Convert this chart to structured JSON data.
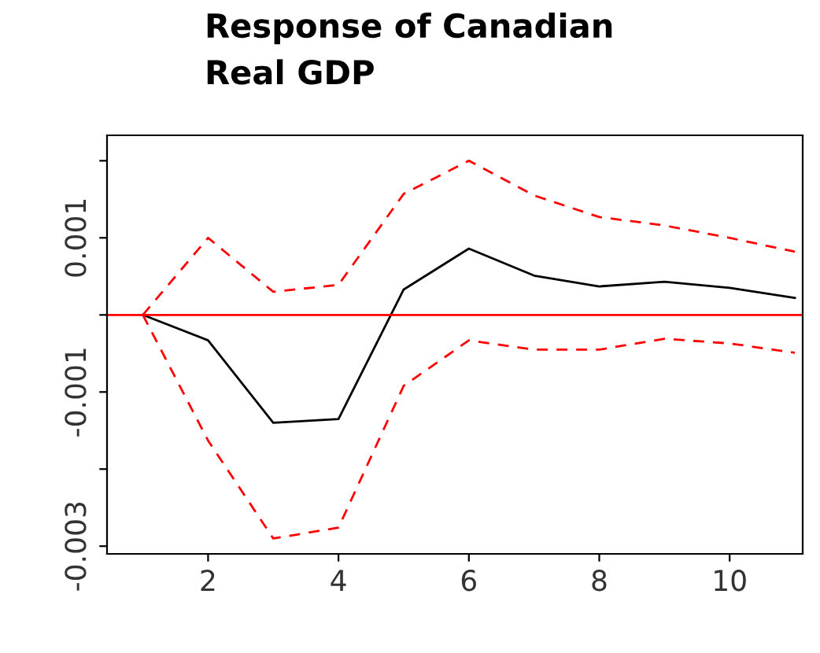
{
  "chart_data": {
    "type": "line",
    "title": "Response of Canadian\nReal GDP",
    "x": [
      1,
      2,
      3,
      4,
      5,
      6,
      7,
      8,
      9,
      10,
      11
    ],
    "series": [
      {
        "color": "#000000",
        "line_style": "solid",
        "values": [
          0,
          -0.00033,
          -0.0014,
          -0.00135,
          0.00033,
          0.00086,
          0.00051,
          0.00037,
          0.00043,
          0.00035,
          0.00022
        ]
      },
      {
        "color": "#ff0000",
        "line_style": "dashed",
        "values": [
          0,
          0.001,
          0.0003,
          0.00039,
          0.00157,
          0.002,
          0.00155,
          0.00127,
          0.00116,
          0.001,
          0.00082
        ]
      },
      {
        "color": "#ff0000",
        "line_style": "dashed",
        "values": [
          0,
          -0.00163,
          -0.0029,
          -0.00276,
          -0.00092,
          -0.00033,
          -0.00045,
          -0.00045,
          -0.00031,
          -0.00037,
          -0.00049
        ]
      }
    ],
    "ref_lines": [
      {
        "axis": "y",
        "value": 0,
        "color": "#ff0000",
        "line_style": "solid"
      }
    ],
    "xlim": [
      0.45,
      11.12
    ],
    "xticks": [
      2,
      4,
      6,
      8,
      10
    ],
    "ylim": [
      -0.0031,
      0.00233
    ],
    "yticks": [
      {
        "value": -0.003,
        "label": "-0.003"
      },
      {
        "value": -0.002,
        "label": null
      },
      {
        "value": -0.001,
        "label": "-0.001"
      },
      {
        "value": 0,
        "label": null
      },
      {
        "value": 0.001,
        "label": "0.001"
      },
      {
        "value": 0.002,
        "label": null
      }
    ],
    "grid": false,
    "legend": false
  }
}
